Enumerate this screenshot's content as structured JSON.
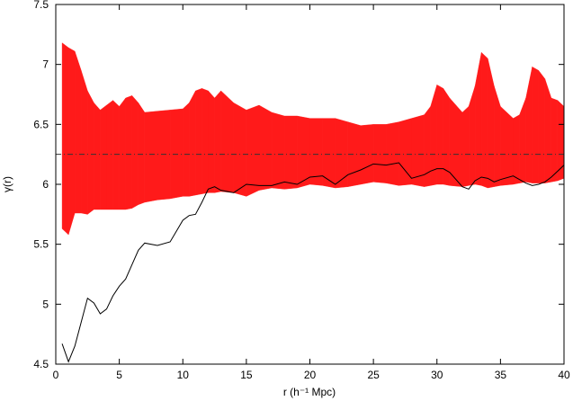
{
  "chart_data": {
    "type": "band",
    "xlabel": "r (h⁻¹ Mpc)",
    "ylabel": "γ(r)",
    "x": [
      0.5,
      1,
      1.5,
      2,
      2.5,
      3,
      3.5,
      4,
      4.5,
      5,
      5.5,
      6,
      6.5,
      7,
      8,
      9,
      10,
      10.5,
      11,
      11.5,
      12,
      12.5,
      13,
      14,
      15,
      16,
      17,
      18,
      19,
      20,
      21,
      22,
      23,
      24,
      25,
      26,
      27,
      28,
      29,
      29.5,
      30,
      30.5,
      31,
      32,
      32.5,
      33,
      33.5,
      34,
      34.5,
      35,
      36,
      36.5,
      37,
      37.5,
      38,
      38.5,
      39,
      39.5,
      40
    ],
    "band": {
      "color": "#ff1a1a",
      "upper": [
        7.18,
        7.14,
        7.11,
        6.95,
        6.78,
        6.68,
        6.62,
        6.66,
        6.7,
        6.65,
        6.72,
        6.74,
        6.68,
        6.6,
        6.61,
        6.62,
        6.63,
        6.68,
        6.78,
        6.8,
        6.78,
        6.72,
        6.78,
        6.68,
        6.62,
        6.66,
        6.6,
        6.57,
        6.57,
        6.55,
        6.55,
        6.55,
        6.52,
        6.49,
        6.5,
        6.5,
        6.52,
        6.55,
        6.58,
        6.65,
        6.83,
        6.8,
        6.72,
        6.6,
        6.65,
        6.82,
        7.1,
        7.05,
        6.82,
        6.65,
        6.55,
        6.58,
        6.72,
        6.98,
        6.95,
        6.88,
        6.72,
        6.7,
        6.65
      ],
      "lower": [
        5.63,
        5.58,
        5.76,
        5.76,
        5.75,
        5.79,
        5.79,
        5.79,
        5.79,
        5.79,
        5.79,
        5.8,
        5.83,
        5.85,
        5.87,
        5.88,
        5.9,
        5.9,
        5.91,
        5.92,
        5.93,
        5.93,
        5.94,
        5.93,
        5.9,
        5.95,
        5.97,
        5.96,
        5.97,
        6.0,
        5.99,
        5.97,
        5.98,
        6.0,
        6.02,
        6.01,
        5.99,
        6.0,
        5.98,
        5.99,
        6.0,
        6.0,
        5.99,
        5.98,
        5.99,
        6.0,
        5.99,
        5.97,
        5.98,
        5.99,
        6.0,
        6.01,
        6.02,
        6.01,
        6.01,
        6.01,
        6.02,
        6.03,
        6.05
      ]
    },
    "series": [
      {
        "color": "#000000",
        "values": [
          4.67,
          4.52,
          4.65,
          4.85,
          5.05,
          5.01,
          4.92,
          4.96,
          5.07,
          5.15,
          5.21,
          5.33,
          5.45,
          5.51,
          5.49,
          5.52,
          5.7,
          5.74,
          5.75,
          5.85,
          5.96,
          5.98,
          5.95,
          5.93,
          6.0,
          5.99,
          5.99,
          6.02,
          6.0,
          6.06,
          6.07,
          6.0,
          6.08,
          6.12,
          6.17,
          6.16,
          6.18,
          6.05,
          6.08,
          6.11,
          6.13,
          6.13,
          6.1,
          5.98,
          5.96,
          6.03,
          6.06,
          6.05,
          6.02,
          6.04,
          6.07,
          6.04,
          6.01,
          5.99,
          6.0,
          6.02,
          6.06,
          6.11,
          6.16
        ]
      }
    ],
    "reference_line": {
      "value": 6.25,
      "color": "#333333"
    },
    "xlim": [
      0,
      40
    ],
    "xticks": [
      0,
      5,
      10,
      15,
      20,
      25,
      30,
      35,
      40
    ],
    "ylim": [
      4.5,
      7.5
    ],
    "yticks": [
      4.5,
      5,
      5.5,
      6,
      6.5,
      7,
      7.5
    ],
    "grid": false
  }
}
